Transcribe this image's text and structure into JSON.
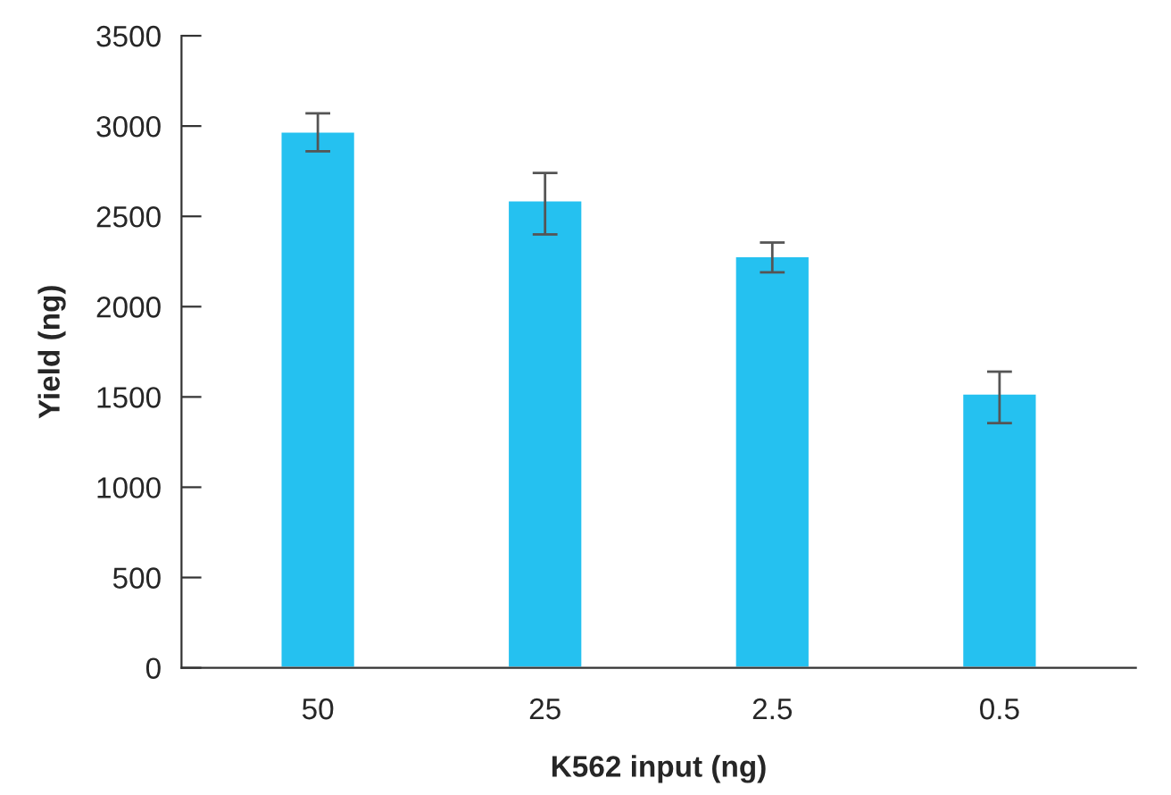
{
  "chart_data": {
    "type": "bar",
    "xlabel": "K562 input (ng)",
    "ylabel": "Yield (ng)",
    "categories": [
      "50",
      "25",
      "2.5",
      "0.5"
    ],
    "values": [
      2970,
      2590,
      2280,
      1520
    ],
    "errors": [
      [
        2860,
        3070
      ],
      [
        2400,
        2740
      ],
      [
        2190,
        2355
      ],
      [
        1355,
        1640
      ]
    ],
    "color": "#25c1f0",
    "ylim": [
      0,
      3500
    ],
    "yticks": [
      0,
      500,
      1000,
      1500,
      2000,
      2500,
      3000,
      3500
    ],
    "grid": false,
    "legend": false
  }
}
